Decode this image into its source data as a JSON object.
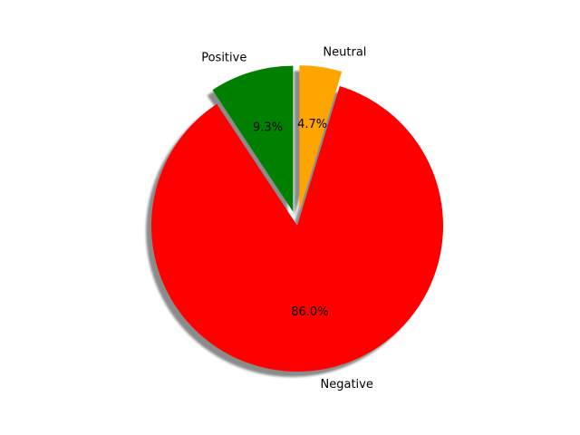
{
  "chart_data": {
    "type": "pie",
    "title": "",
    "start_angle_deg": 90,
    "direction": "counterclockwise",
    "shadow": true,
    "slices": [
      {
        "label": "Positive",
        "value": 9.3,
        "pct_label": "9.3%",
        "color": "#008000",
        "explode": 0.1
      },
      {
        "label": "Negative",
        "value": 86.0,
        "pct_label": "86.0%",
        "color": "#ff0000",
        "explode": 0
      },
      {
        "label": "Neutral",
        "value": 4.7,
        "pct_label": "4.7%",
        "color": "#ffa500",
        "explode": 0.1
      }
    ]
  }
}
